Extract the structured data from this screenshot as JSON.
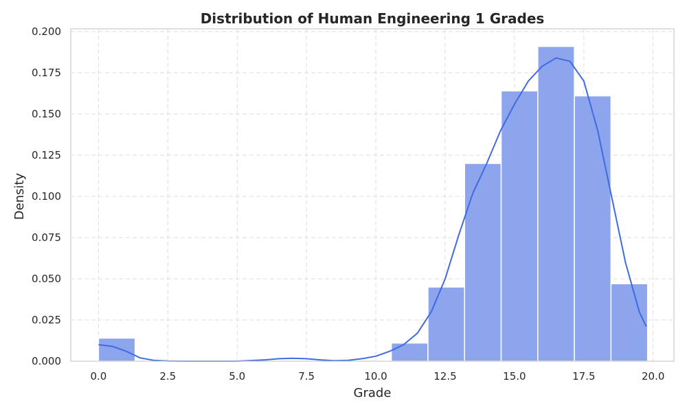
{
  "chart_data": {
    "type": "bar",
    "title": "Distribution of Human Engineering 1 Grades",
    "xlabel": "Grade",
    "ylabel": "Density",
    "xlim": [
      -1.0,
      20.75
    ],
    "ylim": [
      0,
      0.2
    ],
    "x_ticks": [
      "0.0",
      "2.5",
      "5.0",
      "7.5",
      "10.0",
      "12.5",
      "15.0",
      "17.5",
      "20.0"
    ],
    "x_tick_values": [
      0,
      2.5,
      5,
      7.5,
      10,
      12.5,
      15,
      17.5,
      20
    ],
    "y_ticks": [
      "0.000",
      "0.025",
      "0.050",
      "0.075",
      "0.100",
      "0.125",
      "0.150",
      "0.175",
      "0.200"
    ],
    "y_tick_values": [
      0,
      0.025,
      0.05,
      0.075,
      0.1,
      0.125,
      0.15,
      0.175,
      0.2
    ],
    "grid": true,
    "bar_color": "#8da5ec",
    "kde_color": "#4169e1",
    "bins": [
      {
        "x0": 0.0,
        "x1": 1.32,
        "density": 0.014
      },
      {
        "x0": 10.56,
        "x1": 11.88,
        "density": 0.011
      },
      {
        "x0": 11.88,
        "x1": 13.2,
        "density": 0.045
      },
      {
        "x0": 13.2,
        "x1": 14.52,
        "density": 0.12
      },
      {
        "x0": 14.52,
        "x1": 15.84,
        "density": 0.164
      },
      {
        "x0": 15.84,
        "x1": 17.16,
        "density": 0.191
      },
      {
        "x0": 17.16,
        "x1": 18.48,
        "density": 0.161
      },
      {
        "x0": 18.48,
        "x1": 19.8,
        "density": 0.047
      }
    ],
    "kde": {
      "x": [
        0.0,
        0.5,
        1.0,
        1.5,
        2.0,
        2.5,
        3.0,
        4.0,
        5.0,
        6.0,
        6.5,
        7.0,
        7.5,
        8.0,
        8.5,
        9.0,
        9.5,
        10.0,
        10.5,
        11.0,
        11.5,
        12.0,
        12.5,
        13.0,
        13.5,
        14.0,
        14.5,
        15.0,
        15.5,
        16.0,
        16.5,
        17.0,
        17.5,
        18.0,
        18.5,
        19.0,
        19.5,
        19.75
      ],
      "y": [
        0.01,
        0.009,
        0.006,
        0.002,
        0.0005,
        0.0001,
        0.0,
        0.0,
        0.0,
        0.0008,
        0.0015,
        0.0018,
        0.0015,
        0.0008,
        0.0003,
        0.0005,
        0.0015,
        0.003,
        0.006,
        0.01,
        0.017,
        0.03,
        0.05,
        0.077,
        0.102,
        0.12,
        0.14,
        0.156,
        0.17,
        0.179,
        0.184,
        0.182,
        0.17,
        0.14,
        0.1,
        0.06,
        0.03,
        0.021
      ]
    }
  }
}
